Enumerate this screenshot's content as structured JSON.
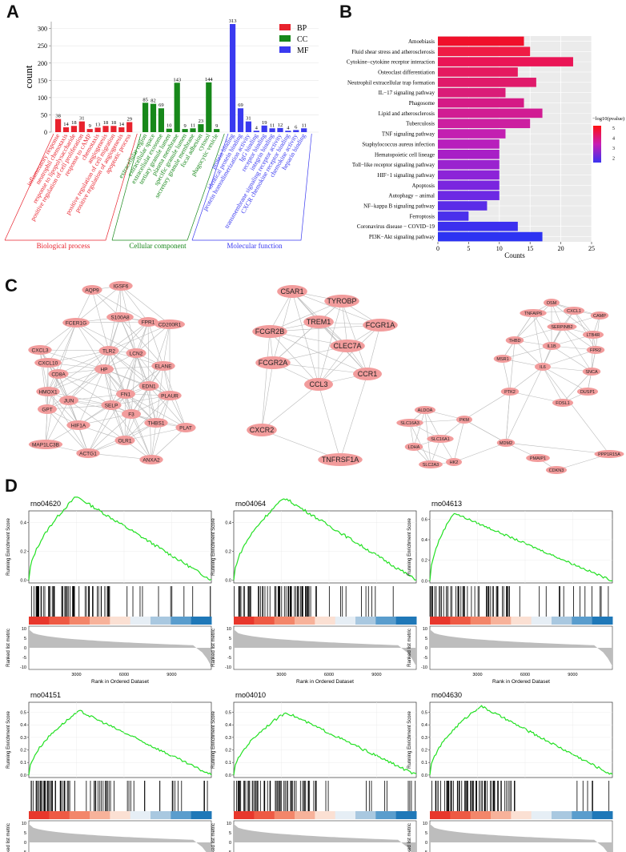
{
  "panels": {
    "a": "A",
    "b": "B",
    "c": "C",
    "d": "D"
  },
  "chart_data": [
    {
      "id": "panel-a",
      "type": "bar",
      "title": "",
      "ylabel": "count",
      "ylim": [
        0,
        320
      ],
      "yticks": [
        0,
        50,
        100,
        150,
        200,
        250,
        300
      ],
      "legend": [
        {
          "name": "BP",
          "color": "#e8222d"
        },
        {
          "name": "CC",
          "color": "#17881a"
        },
        {
          "name": "MF",
          "color": "#3a3af0"
        }
      ],
      "groups": [
        {
          "name": "Biological process",
          "color": "#e8222d",
          "categories": [
            "inflammatory response",
            "neutrophil chemotaxis",
            "response to lipopolysaccharide",
            "positive regulation of cell proliferation",
            "response to cAMP",
            "chemotaxis",
            "angiogenesis",
            "positive regulation of cell migration",
            "positive regulation of angiogenesis",
            "apoptotic process"
          ],
          "values": [
            38,
            14,
            18,
            31,
            9,
            13,
            18,
            18,
            14,
            29
          ]
        },
        {
          "name": "Cellular component",
          "color": "#17881a",
          "categories": [
            "extracellular region",
            "extracellular space",
            "extracellular exosome",
            "tertiary granule lumen",
            "plasma membrane",
            "specific granule lumen",
            "secretory granule membrane",
            "focal adhesion",
            "cytosol",
            "phagocytic vesicle"
          ],
          "values": [
            85,
            82,
            69,
            10,
            143,
            9,
            11,
            23,
            144,
            9
          ]
        },
        {
          "name": "Molecular function",
          "color": "#3a3af0",
          "categories": [
            "protein binding",
            "identical protein binding",
            "protein homodimerization activity",
            "IgG binding",
            "receptor binding",
            "integrin binding",
            "transmembrane signaling receptor activity",
            "CXCR chemokine receptor binding",
            "chemokine activity",
            "heparin binding"
          ],
          "values": [
            313,
            69,
            31,
            4,
            19,
            11,
            12,
            4,
            6,
            11
          ]
        }
      ]
    },
    {
      "id": "panel-b",
      "type": "bar",
      "orientation": "horizontal",
      "xlabel": "Counts",
      "xlim": [
        0,
        25
      ],
      "xticks": [
        0,
        5,
        10,
        15,
        20,
        25
      ],
      "categories": [
        "Amoebiasis",
        "Fluid shear stress and atherosclerosis",
        "Cytokine−cytokine receptor interaction",
        "Osteoclast differentiation",
        "Neutrophil extracellular trap formation",
        "IL−17 signaling pathway",
        "Phagosome",
        "Lipid and atherosclerosis",
        "Tuberculosis",
        "TNF signaling pathway",
        "Staphylococcus aureus infection",
        "Hematopoietic cell lineage",
        "Toll−like receptor signaling pathway",
        "HIF−1 signaling pathway",
        "Apoptosis",
        "Autophagy − animal",
        "NF−kappa B signaling pathway",
        "Ferroptosis",
        "Coronavirus disease − COVID−19",
        "PI3K−Akt signaling pathway"
      ],
      "values": [
        14,
        15,
        22,
        13,
        16,
        11,
        14,
        17,
        15,
        11,
        10,
        10,
        10,
        10,
        10,
        10,
        8,
        5,
        13,
        17
      ],
      "colors": [
        "#f0102a",
        "#ef1c45",
        "#ea1556",
        "#e51960",
        "#e01a6a",
        "#da1c78",
        "#d51a86",
        "#d11c93",
        "#cc1fa0",
        "#c31fb1",
        "#b81fbc",
        "#a81fc6",
        "#9a23cf",
        "#8c23d8",
        "#7a25df",
        "#6c29e4",
        "#5a2ce8",
        "#4a30ec",
        "#3c30ef",
        "#2d33f2"
      ],
      "colorbar": {
        "title": "−log10(pvalue)",
        "ticks": [
          "5",
          "4",
          "3",
          "2"
        ],
        "stops": [
          "#ff1010",
          "#c81eb4",
          "#3a33f0"
        ]
      }
    },
    {
      "id": "panel-d",
      "type": "line",
      "xlabel": "Rank in Ordered Dataset",
      "ylabel": "Running Enrichment Score",
      "metric_label": "Ranked list metric",
      "xticks": [
        "3000",
        "6000",
        "9000"
      ],
      "metric_ticks": [
        "10",
        "5",
        "0",
        "-5",
        "-10"
      ],
      "series": [
        {
          "name": "rno04620",
          "peak_rank": 3000,
          "peak": 0.58,
          "yticks": [
            "0.0",
            "0.2",
            "0.4"
          ]
        },
        {
          "name": "rno04064",
          "peak_rank": 3200,
          "peak": 0.57,
          "yticks": [
            "0.0",
            "0.2",
            "0.4"
          ]
        },
        {
          "name": "rno04613",
          "peak_rank": 1500,
          "peak": 0.66,
          "yticks": [
            "0.0",
            "0.2",
            "0.4",
            "0.6"
          ]
        },
        {
          "name": "rno04151",
          "peak_rank": 3200,
          "peak": 0.51,
          "yticks": [
            "0.0",
            "0.1",
            "0.2",
            "0.3",
            "0.4",
            "0.5"
          ]
        },
        {
          "name": "rno04010",
          "peak_rank": 3300,
          "peak": 0.5,
          "yticks": [
            "0.0",
            "0.1",
            "0.2",
            "0.3",
            "0.4",
            "0.5"
          ]
        },
        {
          "name": "rno04630",
          "peak_rank": 3200,
          "peak": 0.55,
          "yticks": [
            "0.0",
            "0.1",
            "0.2",
            "0.3",
            "0.4",
            "0.5"
          ]
        }
      ]
    }
  ],
  "network": {
    "clusters": [
      {
        "name": "cluster-1",
        "nodes": [
          "AQP9",
          "IGSF6",
          "FCER1G",
          "S100A8",
          "FPR1",
          "CD200R1",
          "CXCL3",
          "TLR2",
          "LCN2",
          "CXCL10",
          "HP",
          "ELANE",
          "CD8A",
          "HMOX1",
          "EDN1",
          "FN1",
          "JUN",
          "PLAUR",
          "GPT",
          "SELP",
          "F3",
          "HIF1A",
          "THBS1",
          "PLAT",
          "MAP1LC3B",
          "OLR1",
          "ACTG1",
          "ANXA2"
        ]
      },
      {
        "name": "cluster-2",
        "nodes": [
          "C5AR1",
          "TYROBP",
          "TREM1",
          "FCGR2B",
          "FCGR1A",
          "CLEC7A",
          "FCGR2A",
          "CCL3",
          "CCR1",
          "CXCR2",
          "TNFRSF1A"
        ]
      },
      {
        "name": "cluster-3",
        "nodes": [
          "OSM",
          "TNFAIP6",
          "CXCL1",
          "CAMP",
          "SERPINB2",
          "LTB4R",
          "THBD",
          "IL1B",
          "FPR2",
          "MSR1",
          "IL6",
          "SNCA",
          "PTK2",
          "DUSP1",
          "FOSL1",
          "MDM2",
          "PPP1R15A",
          "ALDOA",
          "PKM",
          "SLC16A3",
          "SLC16A1",
          "PMAIP1",
          "LDHA",
          "CDKN3",
          "SLC2A3",
          "HK2"
        ]
      }
    ]
  }
}
